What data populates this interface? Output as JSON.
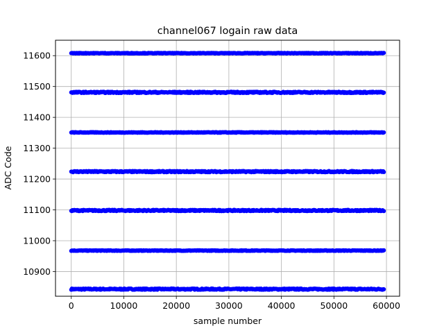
{
  "chart_data": {
    "type": "scatter",
    "title": "channel067 logain raw data",
    "xlabel": "sample number",
    "ylabel": "ADC Code",
    "xlim": [
      -3000,
      62500
    ],
    "ylim": [
      10820,
      11650
    ],
    "xticks": [
      0,
      10000,
      20000,
      30000,
      40000,
      50000,
      60000
    ],
    "xtick_labels": [
      "0",
      "10000",
      "20000",
      "30000",
      "40000",
      "50000",
      "60000"
    ],
    "yticks": [
      10900,
      11000,
      11100,
      11200,
      11300,
      11400,
      11500,
      11600
    ],
    "ytick_labels": [
      "10900",
      "11000",
      "11100",
      "11200",
      "11300",
      "11400",
      "11500",
      "11600"
    ],
    "grid": true,
    "marker_color": "#0000ff",
    "series": [
      {
        "x_range": [
          0,
          59500
        ],
        "levels": [
          10843,
          10968,
          11098,
          11224,
          11351,
          11481,
          11608
        ],
        "level_spread": [
          2,
          1,
          2,
          2,
          1,
          2,
          1
        ]
      }
    ]
  }
}
